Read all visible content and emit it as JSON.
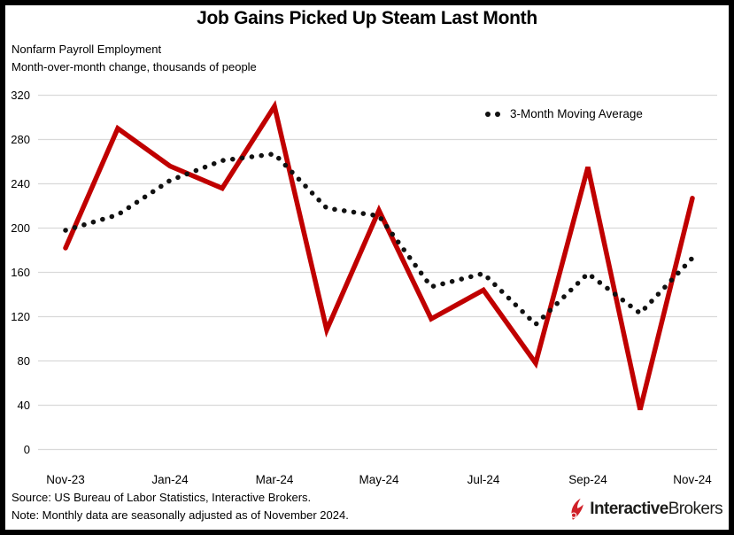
{
  "header": {
    "title": "Job Gains Picked Up Steam Last Month",
    "subtitle_line1": "Nonfarm Payroll Employment",
    "subtitle_line2": "Month-over-month change, thousands of people"
  },
  "legend": {
    "label": "3-Month Moving Average",
    "marker": "dotted-black"
  },
  "footer": {
    "source": "Source: US Bureau of Labor Statistics, Interactive Brokers.",
    "note": "Note: Monthly data are seasonally adjusted as of November 2024.",
    "logo_bold": "Interactive",
    "logo_regular": "Brokers",
    "logo_icon": "ib-spark-icon"
  },
  "colors": {
    "series_red": "#C00000",
    "series_black": "#111111",
    "gridline": "#D9D9D9",
    "logo_red": "#D02028",
    "text": "#000000",
    "frame_border": "#000000"
  },
  "chart_data": {
    "type": "line",
    "title": "Job Gains Picked Up Steam Last Month",
    "xlabel": "",
    "ylabel": "Month-over-month change, thousands of people",
    "categories": [
      "Nov-23",
      "Dec-23",
      "Jan-24",
      "Feb-24",
      "Mar-24",
      "Apr-24",
      "May-24",
      "Jun-24",
      "Jul-24",
      "Aug-24",
      "Sep-24",
      "Oct-24",
      "Nov-24"
    ],
    "x_tick_labels": [
      "Nov-23",
      "Jan-24",
      "Mar-24",
      "May-24",
      "Jul-24",
      "Sep-24",
      "Nov-24"
    ],
    "x_tick_every": 2,
    "yticks": [
      0,
      40,
      80,
      120,
      160,
      200,
      240,
      280,
      320
    ],
    "ylim": [
      0,
      320
    ],
    "grid": true,
    "legend_position": "upper-right",
    "series": [
      {
        "name": "Nonfarm payroll monthly change",
        "style": "solid",
        "color": "#C00000",
        "values": [
          182,
          290,
          256,
          236,
          310,
          108,
          216,
          118,
          144,
          78,
          255,
          36,
          227
        ]
      },
      {
        "name": "3-Month Moving Average",
        "style": "dotted",
        "color": "#111111",
        "values": [
          198,
          212,
          243,
          261,
          267,
          218,
          211,
          147,
          159,
          113,
          159,
          123,
          173
        ]
      }
    ]
  }
}
